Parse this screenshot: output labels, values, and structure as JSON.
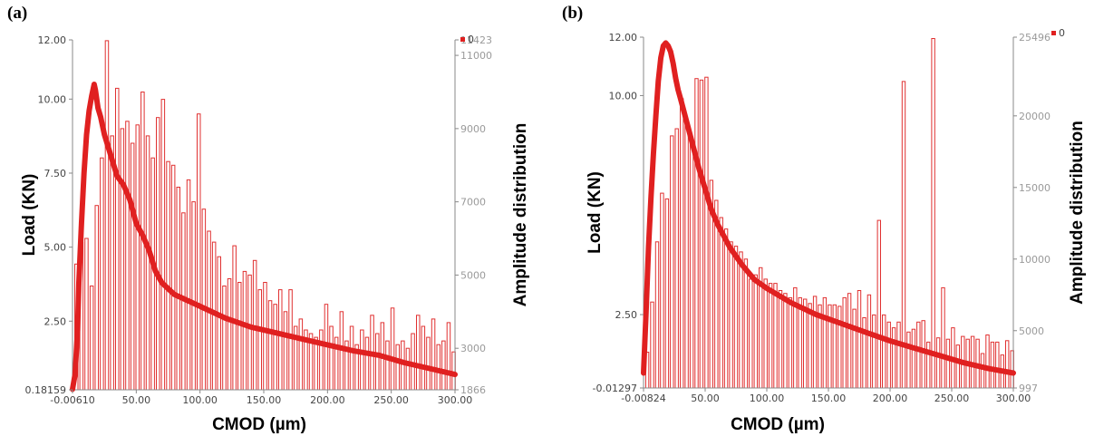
{
  "colors": {
    "series": "#e02020",
    "bar": "#e03030",
    "axis": "#888888"
  },
  "legend_marker": "0",
  "chart_data": [
    {
      "panel": "(a)",
      "type": "bar+line",
      "xlabel": "CMOD (µm)",
      "ylabel": "Load (KN)",
      "y2label": "Amplitude distribution",
      "x_tick_labels": [
        "-0.00610",
        "50.00",
        "100.00",
        "150.00",
        "200.00",
        "250.00",
        "300.00"
      ],
      "x_ticks": [
        0,
        50,
        100,
        150,
        200,
        250,
        300
      ],
      "xlim": [
        -0.0061,
        300
      ],
      "y_tick_labels": [
        "0.18159",
        "2.50",
        "5.00",
        "7.50",
        "10.00",
        "12.00"
      ],
      "y_ticks": [
        0.18159,
        2.5,
        5,
        7.5,
        10,
        12
      ],
      "ylim": [
        0.18159,
        12
      ],
      "y2_tick_labels": [
        "1866",
        "3000",
        "5000",
        "7000",
        "9000",
        "11000",
        "11423"
      ],
      "y2_ticks": [
        1866,
        3000,
        5000,
        7000,
        9000,
        11000,
        11423
      ],
      "y2lim": [
        1866,
        11423
      ],
      "load_curve": {
        "x": [
          0,
          2,
          4,
          5,
          7,
          9,
          11,
          13,
          15,
          17,
          18,
          19,
          20,
          22,
          25,
          30,
          35,
          40,
          45,
          50,
          55,
          60,
          65,
          70,
          75,
          80,
          90,
          100,
          120,
          140,
          160,
          180,
          200,
          220,
          240,
          260,
          280,
          300
        ],
        "y": [
          0.2,
          0.7,
          2.2,
          3.8,
          5.8,
          7.5,
          8.8,
          9.6,
          10.1,
          10.5,
          10.3,
          10.0,
          9.7,
          9.4,
          8.8,
          8.1,
          7.4,
          7.1,
          6.6,
          5.8,
          5.4,
          4.9,
          4.2,
          3.8,
          3.6,
          3.4,
          3.2,
          3.0,
          2.6,
          2.3,
          2.1,
          1.9,
          1.7,
          1.5,
          1.35,
          1.1,
          0.9,
          0.7
        ]
      },
      "amplitude_bars": {
        "x": [
          3,
          7,
          11,
          15,
          19,
          23,
          27,
          31,
          35,
          39,
          43,
          47,
          51,
          55,
          59,
          63,
          67,
          71,
          75,
          79,
          83,
          87,
          91,
          95,
          99,
          103,
          107,
          111,
          115,
          119,
          123,
          127,
          131,
          135,
          139,
          143,
          147,
          151,
          155,
          159,
          163,
          167,
          171,
          175,
          179,
          183,
          187,
          191,
          195,
          199,
          203,
          207,
          211,
          215,
          219,
          223,
          227,
          231,
          235,
          239,
          243,
          247,
          251,
          255,
          259,
          263,
          267,
          271,
          275,
          279,
          283,
          287,
          291,
          295,
          299
        ],
        "values": [
          5300,
          5900,
          6000,
          4700,
          6900,
          8200,
          11400,
          8800,
          10100,
          9000,
          9200,
          8600,
          9100,
          10000,
          8800,
          8200,
          9300,
          9800,
          8100,
          8000,
          7400,
          6700,
          7600,
          7000,
          9400,
          6800,
          6200,
          5900,
          5500,
          4700,
          4900,
          5800,
          4800,
          5100,
          5000,
          5400,
          4600,
          4800,
          4300,
          4200,
          4600,
          4000,
          4600,
          3600,
          3800,
          3500,
          3400,
          3300,
          3500,
          4200,
          3600,
          3300,
          4000,
          3200,
          3600,
          3100,
          3500,
          3300,
          3900,
          3400,
          3700,
          3200,
          4100,
          3100,
          3200,
          3000,
          3400,
          3900,
          3600,
          3300,
          3800,
          3100,
          3200,
          3700,
          2900
        ]
      }
    },
    {
      "panel": "(b)",
      "type": "bar+line",
      "xlabel": "CMOD (µm)",
      "ylabel": "Load (KN)",
      "y2label": "Amplitude distribution",
      "x_tick_labels": [
        "-0.00824",
        "50.00",
        "100.00",
        "150.00",
        "200.00",
        "250.00",
        "300.00"
      ],
      "x_ticks": [
        0,
        50,
        100,
        150,
        200,
        250,
        300
      ],
      "xlim": [
        -0.00824,
        300
      ],
      "y_tick_labels": [
        "-0.01297",
        "2.50",
        "10.00",
        "12.00"
      ],
      "y_ticks": [
        -0.01297,
        2.5,
        10,
        12
      ],
      "ylim": [
        -0.01297,
        12
      ],
      "y2_tick_labels": [
        "997",
        "5000",
        "10000",
        "15000",
        "20000",
        "25496"
      ],
      "y2_ticks": [
        997,
        5000,
        10000,
        15000,
        20000,
        25496
      ],
      "y2lim": [
        997,
        25496
      ],
      "load_curve": {
        "x": [
          0,
          2,
          4,
          6,
          8,
          10,
          12,
          14,
          16,
          18,
          20,
          22,
          24,
          26,
          28,
          30,
          35,
          40,
          45,
          50,
          55,
          60,
          70,
          80,
          90,
          100,
          120,
          140,
          160,
          180,
          200,
          220,
          240,
          260,
          280,
          300
        ],
        "y": [
          0.5,
          2.5,
          4.8,
          6.5,
          8.0,
          9.3,
          10.5,
          11.3,
          11.7,
          11.8,
          11.7,
          11.5,
          11.1,
          10.6,
          10.2,
          9.9,
          9.1,
          8.3,
          7.5,
          6.8,
          6.1,
          5.6,
          4.8,
          4.2,
          3.7,
          3.4,
          2.9,
          2.5,
          2.2,
          1.9,
          1.6,
          1.35,
          1.1,
          0.85,
          0.65,
          0.5
        ]
      },
      "amplitude_bars": {
        "x": [
          3,
          7,
          11,
          15,
          19,
          23,
          27,
          31,
          35,
          39,
          43,
          47,
          51,
          55,
          59,
          63,
          67,
          71,
          75,
          79,
          83,
          87,
          91,
          95,
          99,
          103,
          107,
          111,
          115,
          119,
          123,
          127,
          131,
          135,
          139,
          143,
          147,
          151,
          155,
          159,
          163,
          167,
          171,
          175,
          179,
          183,
          187,
          191,
          195,
          199,
          203,
          207,
          211,
          215,
          219,
          223,
          227,
          231,
          235,
          239,
          243,
          247,
          251,
          255,
          259,
          263,
          267,
          271,
          275,
          279,
          283,
          287,
          291,
          295,
          299
        ],
        "values": [
          3500,
          7000,
          11200,
          14600,
          14200,
          18600,
          19100,
          21200,
          19600,
          18200,
          22600,
          22500,
          22700,
          15500,
          14100,
          12900,
          12100,
          11200,
          10900,
          10500,
          10000,
          8600,
          8900,
          9400,
          8600,
          8300,
          8300,
          7800,
          7600,
          7300,
          8000,
          7300,
          7200,
          6900,
          7400,
          6800,
          7300,
          6800,
          6800,
          6700,
          7300,
          7600,
          6500,
          7800,
          5900,
          7500,
          6100,
          12700,
          6100,
          5600,
          5200,
          5600,
          22400,
          4900,
          5100,
          5600,
          5700,
          4200,
          25400,
          4500,
          8000,
          4400,
          5200,
          4000,
          4600,
          4400,
          4600,
          4400,
          3400,
          4700,
          4200,
          4200,
          3300,
          4300,
          3600
        ]
      }
    }
  ]
}
